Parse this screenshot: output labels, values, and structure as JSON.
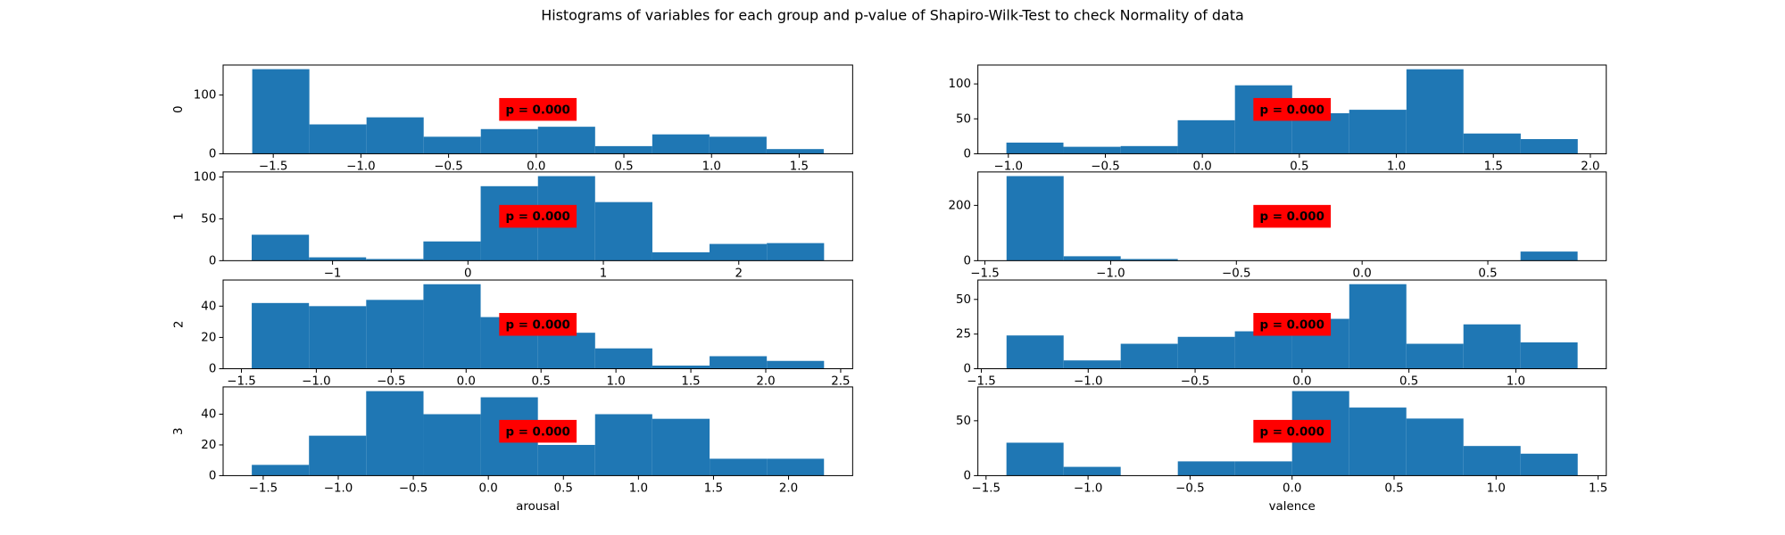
{
  "title": "Histograms of variables for each group and p-value of Shapiro-Wilk-Test to check Normality of data",
  "chart_data": [
    {
      "type": "histogram",
      "ylabel": "0",
      "color": "#1f77b4",
      "annotation": "p = 0.000",
      "bins": [
        -1.62,
        -1.294,
        -0.968,
        -0.642,
        -0.316,
        0.01,
        0.336,
        0.662,
        0.988,
        1.314,
        1.64
      ],
      "values": [
        144,
        50,
        62,
        29,
        42,
        46,
        13,
        33,
        29,
        8
      ],
      "xlim": [
        -1.786,
        1.805
      ],
      "ylim": [
        0,
        151
      ],
      "yticks": [
        0,
        100
      ],
      "xticks": [
        {
          "value": -1.5,
          "label": "−1.5"
        },
        {
          "value": -1.0,
          "label": "−1.0"
        },
        {
          "value": -0.5,
          "label": "−0.5"
        },
        {
          "value": 0,
          "label": "0.0"
        },
        0.5,
        {
          "value": 1.0,
          "label": "1.0"
        },
        1.5
      ]
    },
    {
      "type": "histogram",
      "ylabel": "1",
      "color": "#1f77b4",
      "annotation": "p = 0.000",
      "bins": [
        -1.597,
        -1.174,
        -0.752,
        -0.329,
        0.094,
        0.517,
        0.939,
        1.362,
        1.784,
        2.207,
        2.63
      ],
      "values": [
        31,
        4,
        2,
        23,
        89,
        101,
        70,
        10,
        20,
        21
      ],
      "xlim": [
        -1.808,
        2.841
      ],
      "ylim": [
        0,
        106
      ],
      "yticks": [
        0,
        50,
        100
      ],
      "xticks": [
        {
          "value": -1,
          "label": "−1"
        },
        0,
        1,
        2
      ]
    },
    {
      "type": "histogram",
      "ylabel": "2",
      "color": "#1f77b4",
      "annotation": "p = 0.000",
      "bins": [
        -1.431,
        -1.049,
        -0.667,
        -0.285,
        0.097,
        0.479,
        0.861,
        1.243,
        1.625,
        2.007,
        2.389
      ],
      "values": [
        42,
        40,
        44,
        54,
        33,
        23,
        13,
        2,
        8,
        5
      ],
      "xlim": [
        -1.622,
        2.58
      ],
      "ylim": [
        0,
        56.7
      ],
      "yticks": [
        0,
        20,
        40
      ],
      "xticks": [
        {
          "value": -1.5,
          "label": "−1.5"
        },
        {
          "value": -1.0,
          "label": "−1.0"
        },
        {
          "value": -0.5,
          "label": "−0.5"
        },
        {
          "value": 0,
          "label": "0.0"
        },
        0.5,
        {
          "value": 1.0,
          "label": "1.0"
        },
        1.5,
        {
          "value": 2.0,
          "label": "2.0"
        },
        2.5
      ]
    },
    {
      "type": "histogram",
      "ylabel": "3",
      "xlabel": "arousal",
      "color": "#1f77b4",
      "annotation": "p = 0.000",
      "bins": [
        -1.576,
        -1.195,
        -0.814,
        -0.432,
        -0.051,
        0.33,
        0.711,
        1.092,
        1.474,
        1.855,
        2.236
      ],
      "values": [
        7,
        26,
        55,
        40,
        51,
        20,
        40,
        37,
        11,
        11
      ],
      "xlim": [
        -1.767,
        2.427
      ],
      "ylim": [
        0,
        57.75
      ],
      "yticks": [
        0,
        20,
        40
      ],
      "xticks": [
        {
          "value": -1.5,
          "label": "−1.5"
        },
        {
          "value": -1.0,
          "label": "−1.0"
        },
        {
          "value": -0.5,
          "label": "−0.5"
        },
        {
          "value": 0,
          "label": "0.0"
        },
        0.5,
        {
          "value": 1.0,
          "label": "1.0"
        },
        1.5,
        {
          "value": 2.0,
          "label": "2.0"
        }
      ]
    },
    {
      "type": "histogram",
      "color": "#1f77b4",
      "annotation": "p = 0.000",
      "bins": [
        -1.01,
        -0.716,
        -0.421,
        -0.127,
        0.168,
        0.463,
        0.757,
        1.052,
        1.346,
        1.641,
        1.935
      ],
      "values": [
        16,
        10,
        11,
        48,
        98,
        58,
        63,
        121,
        29,
        21
      ],
      "xlim": [
        -1.157,
        2.082
      ],
      "ylim": [
        0,
        127
      ],
      "yticks": [
        0,
        50,
        100
      ],
      "xticks": [
        {
          "value": -1.0,
          "label": "−1.0"
        },
        {
          "value": -0.5,
          "label": "−0.5"
        },
        {
          "value": 0,
          "label": "0.0"
        },
        0.5,
        {
          "value": 1.0,
          "label": "1.0"
        },
        1.5,
        {
          "value": 2.0,
          "label": "2.0"
        }
      ]
    },
    {
      "type": "histogram",
      "color": "#1f77b4",
      "annotation": "p = 0.000",
      "bins": [
        -1.414,
        -1.187,
        -0.96,
        -0.733,
        -0.506,
        -0.279,
        -0.051,
        0.176,
        0.403,
        0.63,
        0.857
      ],
      "values": [
        306,
        16,
        6,
        0,
        0,
        0,
        0,
        0,
        0,
        33
      ],
      "xlim": [
        -1.528,
        0.971
      ],
      "ylim": [
        0,
        321
      ],
      "yticks": [
        0,
        200
      ],
      "xticks": [
        {
          "value": -1.5,
          "label": "−1.5"
        },
        {
          "value": -1.0,
          "label": "−1.0"
        },
        {
          "value": -0.5,
          "label": "−0.5"
        },
        {
          "value": 0,
          "label": "0.0"
        },
        0.5
      ]
    },
    {
      "type": "histogram",
      "color": "#1f77b4",
      "annotation": "p = 0.000",
      "bins": [
        -1.382,
        -1.115,
        -0.848,
        -0.581,
        -0.314,
        -0.047,
        0.221,
        0.488,
        0.755,
        1.022,
        1.289
      ],
      "values": [
        24,
        6,
        18,
        23,
        27,
        36,
        61,
        18,
        32,
        19
      ],
      "xlim": [
        -1.516,
        1.423
      ],
      "ylim": [
        0,
        64
      ],
      "yticks": [
        0,
        25,
        50
      ],
      "xticks": [
        {
          "value": -1.5,
          "label": "−1.5"
        },
        {
          "value": -1.0,
          "label": "−1.0"
        },
        {
          "value": -0.5,
          "label": "−0.5"
        },
        {
          "value": 0,
          "label": "0.0"
        },
        0.5,
        {
          "value": 1.0,
          "label": "1.0"
        }
      ]
    },
    {
      "type": "histogram",
      "xlabel": "valence",
      "color": "#1f77b4",
      "annotation": "p = 0.000",
      "bins": [
        -1.4,
        -1.12,
        -0.84,
        -0.56,
        -0.28,
        0,
        0.28,
        0.56,
        0.84,
        1.12,
        1.4
      ],
      "values": [
        30,
        8,
        0,
        13,
        13,
        77,
        62,
        52,
        27,
        20
      ],
      "xlim": [
        -1.54,
        1.54
      ],
      "ylim": [
        0,
        80.8
      ],
      "yticks": [
        0,
        50
      ],
      "xticks": [
        {
          "value": -1.5,
          "label": "−1.5"
        },
        {
          "value": -1.0,
          "label": "−1.0"
        },
        {
          "value": -0.5,
          "label": "−0.5"
        },
        {
          "value": 0,
          "label": "0.0"
        },
        0.5,
        {
          "value": 1.0,
          "label": "1.0"
        },
        1.5
      ]
    }
  ]
}
